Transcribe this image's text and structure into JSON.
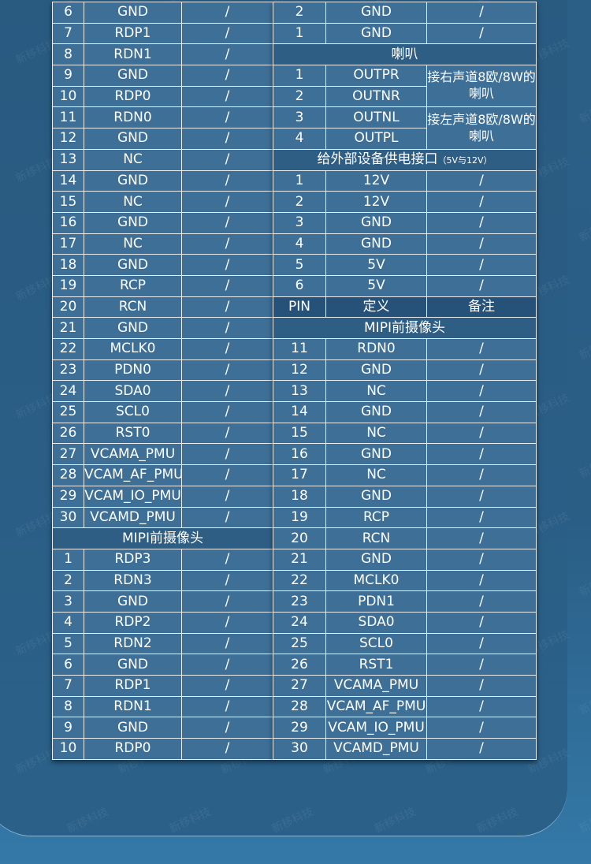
{
  "watermark": "新移科技",
  "left": {
    "rows": [
      [
        "6",
        "GND",
        "/"
      ],
      [
        "7",
        "RDP1",
        "/"
      ],
      [
        "8",
        "RDN1",
        "/"
      ],
      [
        "9",
        "GND",
        "/"
      ],
      [
        "10",
        "RDP0",
        "/"
      ],
      [
        "11",
        "RDN0",
        "/"
      ],
      [
        "12",
        "GND",
        "/"
      ],
      [
        "13",
        "NC",
        "/"
      ],
      [
        "14",
        "GND",
        "/"
      ],
      [
        "15",
        "NC",
        "/"
      ],
      [
        "16",
        "GND",
        "/"
      ],
      [
        "17",
        "NC",
        "/"
      ],
      [
        "18",
        "GND",
        "/"
      ],
      [
        "19",
        "RCP",
        "/"
      ],
      [
        "20",
        "RCN",
        "/"
      ],
      [
        "21",
        "GND",
        "/"
      ],
      [
        "22",
        "MCLK0",
        "/"
      ],
      [
        "23",
        "PDN0",
        "/"
      ],
      [
        "24",
        "SDA0",
        "/"
      ],
      [
        "25",
        "SCL0",
        "/"
      ],
      [
        "26",
        "RST0",
        "/"
      ],
      [
        "27",
        "VCAMA_PMU",
        "/"
      ],
      [
        "28",
        "VCAM_AF_PMU",
        "/"
      ],
      [
        "29",
        "VCAM_IO_PMU",
        "/"
      ],
      [
        "30",
        "VCAMD_PMU",
        "/"
      ]
    ],
    "section": "MIPI前摄像头",
    "rows2": [
      [
        "1",
        "RDP3",
        "/"
      ],
      [
        "2",
        "RDN3",
        "/"
      ],
      [
        "3",
        "GND",
        "/"
      ],
      [
        "4",
        "RDP2",
        "/"
      ],
      [
        "5",
        "RDN2",
        "/"
      ],
      [
        "6",
        "GND",
        "/"
      ],
      [
        "7",
        "RDP1",
        "/"
      ],
      [
        "8",
        "RDN1",
        "/"
      ],
      [
        "9",
        "GND",
        "/"
      ],
      [
        "10",
        "RDP0",
        "/"
      ]
    ]
  },
  "right": {
    "top_rows": [
      [
        "2",
        "GND",
        "/"
      ],
      [
        "1",
        "GND",
        "/"
      ]
    ],
    "speaker_section": "喇叭",
    "speaker_rows": [
      [
        "1",
        "OUTPR"
      ],
      [
        "2",
        "OUTNR"
      ],
      [
        "3",
        "OUTNL"
      ],
      [
        "4",
        "OUTPL"
      ]
    ],
    "speaker_notes": [
      "接右声道8欧/8W的喇叭",
      "接左声道8欧/8W的喇叭"
    ],
    "power_section": "给外部设备供电接口",
    "power_section_note": "（5V与12V）",
    "power_rows": [
      [
        "1",
        "12V",
        "/"
      ],
      [
        "2",
        "12V",
        "/"
      ],
      [
        "3",
        "GND",
        "/"
      ],
      [
        "4",
        "GND",
        "/"
      ],
      [
        "5",
        "5V",
        "/"
      ],
      [
        "6",
        "5V",
        "/"
      ]
    ],
    "header": [
      "PIN",
      "定义",
      "备注"
    ],
    "camera_section": "MIPI前摄像头",
    "camera_rows": [
      [
        "11",
        "RDN0",
        "/"
      ],
      [
        "12",
        "GND",
        "/"
      ],
      [
        "13",
        "NC",
        "/"
      ],
      [
        "14",
        "GND",
        "/"
      ],
      [
        "15",
        "NC",
        "/"
      ],
      [
        "16",
        "GND",
        "/"
      ],
      [
        "17",
        "NC",
        "/"
      ],
      [
        "18",
        "GND",
        "/"
      ],
      [
        "19",
        "RCP",
        "/"
      ],
      [
        "20",
        "RCN",
        "/"
      ],
      [
        "21",
        "GND",
        "/"
      ],
      [
        "22",
        "MCLK0",
        "/"
      ],
      [
        "23",
        "PDN1",
        "/"
      ],
      [
        "24",
        "SDA0",
        "/"
      ],
      [
        "25",
        "SCL0",
        "/"
      ],
      [
        "26",
        "RST1",
        "/"
      ],
      [
        "27",
        "VCAMA_PMU",
        "/"
      ],
      [
        "28",
        "VCAM_AF_PMU",
        "/"
      ],
      [
        "29",
        "VCAM_IO_PMU",
        "/"
      ],
      [
        "30",
        "VCAMD_PMU",
        "/"
      ]
    ]
  }
}
